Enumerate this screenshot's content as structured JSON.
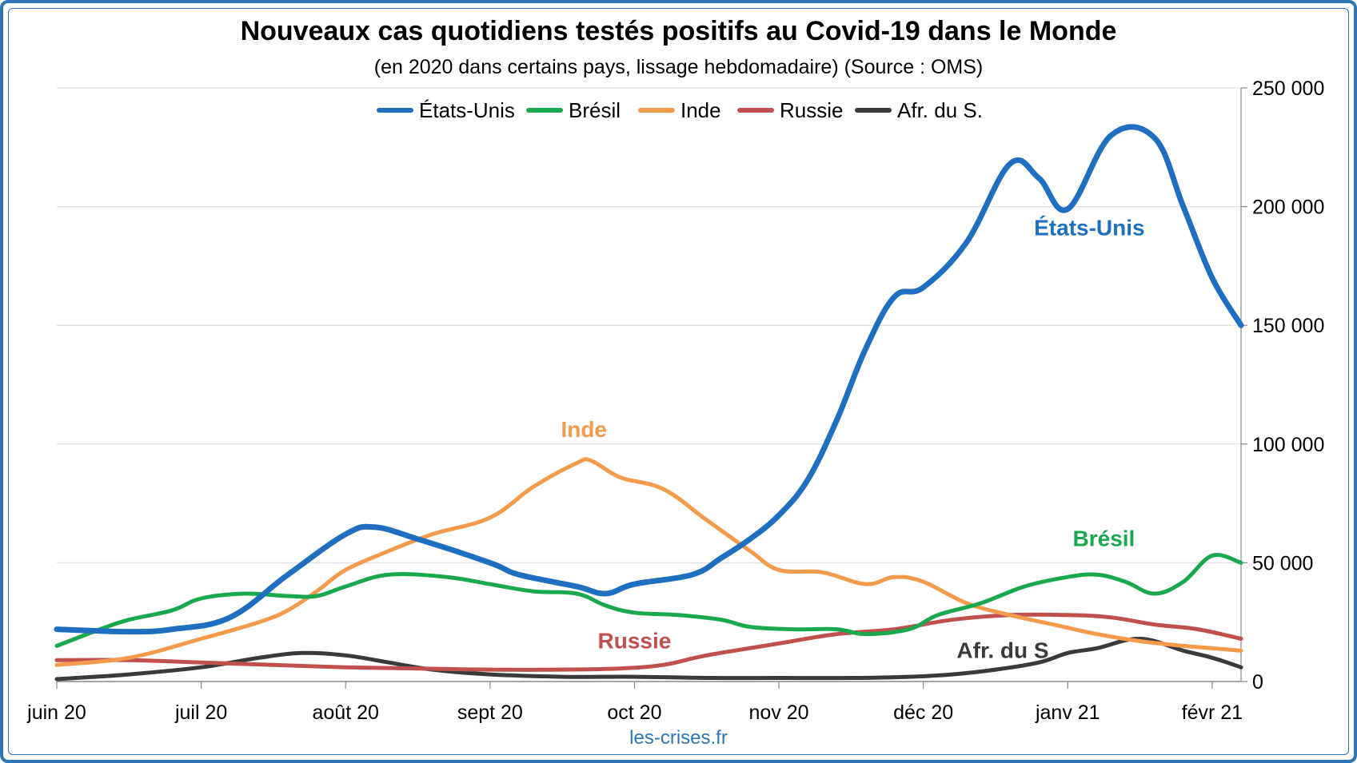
{
  "title": "Nouveaux cas quotidiens testés positifs au Covid-19 dans le Monde",
  "subtitle": "(en 2020 dans certains pays, lissage hebdomadaire) (Source : OMS)",
  "source": "les-crises.fr",
  "chart_data": {
    "type": "line",
    "x": [
      "juin 20",
      "juil 20",
      "août 20",
      "sept 20",
      "oct 20",
      "nov 20",
      "déc 20",
      "janv 21",
      "févr 21"
    ],
    "x_numeric_months": [
      0,
      0.5,
      1,
      1.3,
      1.7,
      2,
      2.5,
      3,
      3.5,
      4,
      4.4,
      5,
      5.5,
      5.9,
      6.2,
      6.5,
      7,
      7.4,
      7.8,
      8.2
    ],
    "xlim": [
      0,
      8.2
    ],
    "ylim": [
      0,
      250000
    ],
    "y_ticks": [
      "0",
      "50 000",
      "100 000",
      "150 000",
      "200 000",
      "250 000"
    ],
    "y_axis_side": "right",
    "grid": true,
    "legend": "top",
    "series": [
      {
        "name": "États-Unis",
        "color": "#1f6fc0",
        "x": [
          0,
          0.5,
          0.8,
          1.2,
          1.6,
          2.0,
          2.2,
          2.5,
          3.0,
          3.2,
          3.6,
          3.8,
          4.0,
          4.4,
          4.6,
          4.8,
          5.0,
          5.2,
          5.4,
          5.6,
          5.8,
          6.0,
          6.3,
          6.6,
          6.8,
          7.0,
          7.3,
          7.6,
          7.8,
          8.0,
          8.2
        ],
        "values": [
          22000,
          21000,
          22000,
          27000,
          45000,
          62000,
          65000,
          60000,
          50000,
          45000,
          40000,
          37000,
          41000,
          45000,
          52000,
          60000,
          70000,
          85000,
          110000,
          140000,
          162000,
          166000,
          185000,
          218000,
          212000,
          199000,
          230000,
          229000,
          200000,
          170000,
          150000
        ]
      },
      {
        "name": "Brésil",
        "color": "#1aa84e",
        "x": [
          0,
          0.3,
          0.5,
          0.8,
          1.0,
          1.3,
          1.6,
          1.8,
          2.0,
          2.3,
          2.7,
          3.0,
          3.3,
          3.6,
          3.8,
          4.0,
          4.3,
          4.6,
          4.8,
          5.1,
          5.4,
          5.6,
          5.9,
          6.1,
          6.4,
          6.7,
          7.0,
          7.2,
          7.4,
          7.6,
          7.8,
          8.0,
          8.2
        ],
        "values": [
          15000,
          22000,
          26000,
          30000,
          35000,
          37000,
          36000,
          36000,
          40000,
          45000,
          44000,
          41000,
          38000,
          37000,
          32000,
          29000,
          28000,
          26000,
          23000,
          22000,
          22000,
          20000,
          22000,
          28000,
          33000,
          40000,
          44000,
          45000,
          42000,
          37000,
          42000,
          53000,
          50000
        ]
      },
      {
        "name": "Inde",
        "color": "#f39a4b",
        "x": [
          0,
          0.5,
          1.0,
          1.4,
          1.6,
          1.8,
          2.0,
          2.3,
          2.6,
          3.0,
          3.3,
          3.6,
          3.7,
          3.9,
          4.2,
          4.5,
          4.8,
          5.0,
          5.3,
          5.6,
          5.8,
          6.0,
          6.3,
          6.6,
          6.9,
          7.2,
          7.5,
          7.8,
          8.0,
          8.2
        ],
        "values": [
          7000,
          10000,
          18000,
          25000,
          30000,
          38000,
          47000,
          55000,
          62000,
          69000,
          82000,
          92000,
          93000,
          86000,
          81000,
          68000,
          55000,
          47000,
          46000,
          41000,
          44000,
          42000,
          33000,
          28000,
          24000,
          20000,
          17000,
          15000,
          14000,
          13000
        ]
      },
      {
        "name": "Russie",
        "color": "#c0504d",
        "x": [
          0,
          0.5,
          1.0,
          1.5,
          2.0,
          2.5,
          3.0,
          3.5,
          3.9,
          4.2,
          4.5,
          5.0,
          5.4,
          5.8,
          6.2,
          6.6,
          7.0,
          7.3,
          7.6,
          7.9,
          8.2
        ],
        "values": [
          9000,
          9000,
          8000,
          7000,
          6000,
          5500,
          5000,
          5000,
          5500,
          7000,
          11000,
          16000,
          20000,
          22000,
          26000,
          28000,
          28000,
          27000,
          24000,
          22000,
          18000
        ]
      },
      {
        "name": "Afr. du S.",
        "color": "#3a3a3a",
        "x": [
          0,
          0.5,
          1.0,
          1.4,
          1.7,
          2.0,
          2.3,
          2.6,
          3.0,
          3.5,
          4.0,
          4.5,
          5.0,
          5.5,
          5.9,
          6.2,
          6.5,
          6.8,
          7.0,
          7.2,
          7.5,
          7.8,
          8.0,
          8.2
        ],
        "values": [
          1000,
          3000,
          6000,
          10000,
          12000,
          11000,
          8000,
          5000,
          3000,
          2000,
          2000,
          1500,
          1500,
          1500,
          2000,
          3000,
          5000,
          8000,
          12000,
          14000,
          18000,
          13000,
          10000,
          6000
        ]
      }
    ],
    "annotations": [
      {
        "text": "États-Unis",
        "series": "États-Unis",
        "x": 7.15,
        "y": 188000
      },
      {
        "text": "Inde",
        "series": "Inde",
        "x": 3.65,
        "y": 103000
      },
      {
        "text": "Brésil",
        "series": "Brésil",
        "x": 7.25,
        "y": 57000
      },
      {
        "text": "Russie",
        "series": "Russie",
        "x": 4.0,
        "y": 14000
      },
      {
        "text": "Afr. du S",
        "series": "Afr. du S.",
        "x": 6.55,
        "y": 10000
      }
    ]
  }
}
